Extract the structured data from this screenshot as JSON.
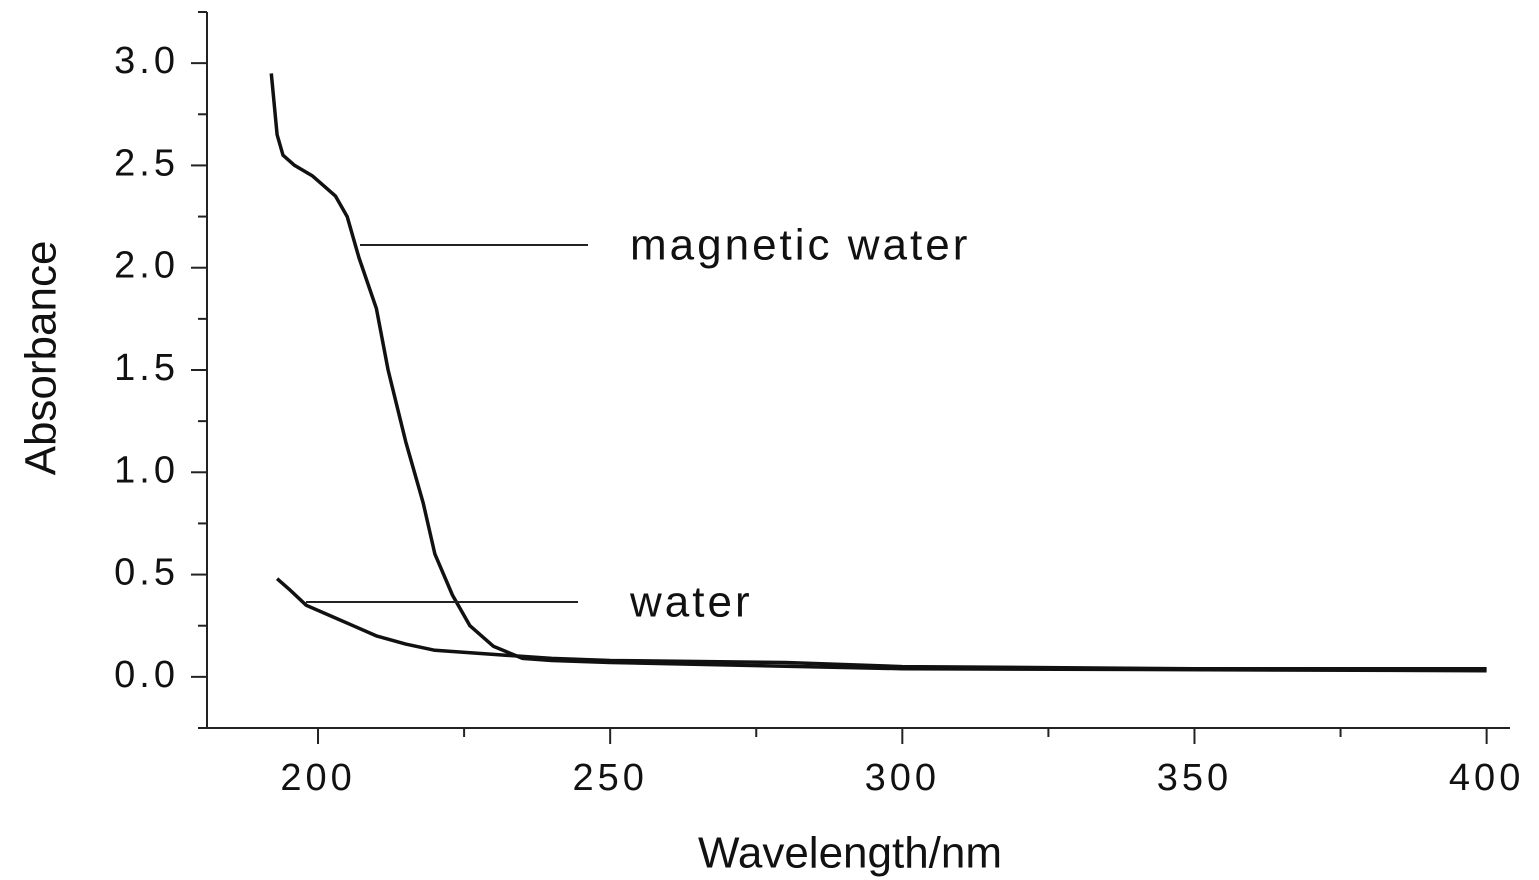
{
  "chart_data": {
    "type": "line",
    "x_label": "Wavelength/nm",
    "y_label": "Absorbance",
    "xlim": [
      181,
      404
    ],
    "ylim": [
      -0.25,
      3.25
    ],
    "xticks": [
      200,
      250,
      300,
      350,
      400
    ],
    "xminor": [
      225,
      275,
      325,
      375
    ],
    "yticks": [
      {
        "value": 0,
        "label": "0.0"
      },
      0.5,
      {
        "value": 1,
        "label": "1.0"
      },
      1.5,
      {
        "value": 2,
        "label": "2.0"
      },
      2.5,
      {
        "value": 3,
        "label": "3.0"
      }
    ],
    "yminor": [
      -0.25,
      0.25,
      0.75,
      1.25,
      1.75,
      2.25,
      2.75,
      3.25
    ],
    "grid": false,
    "series": [
      {
        "name": "magnetic water",
        "color": "#111111",
        "x": [
          192,
          193,
          194,
          196,
          199,
          203,
          205,
          207,
          210,
          212,
          215,
          218,
          220,
          223,
          226,
          230,
          235,
          240,
          250,
          300,
          400
        ],
        "values": [
          2.95,
          2.65,
          2.55,
          2.5,
          2.45,
          2.35,
          2.25,
          2.05,
          1.8,
          1.5,
          1.15,
          0.85,
          0.6,
          0.4,
          0.25,
          0.15,
          0.09,
          0.08,
          0.07,
          0.04,
          0.03
        ]
      },
      {
        "name": "water",
        "color": "#111111",
        "x": [
          193,
          195,
          198,
          202,
          206,
          210,
          215,
          220,
          230,
          240,
          250,
          280,
          300,
          350,
          400
        ],
        "values": [
          0.48,
          0.43,
          0.35,
          0.3,
          0.25,
          0.2,
          0.16,
          0.13,
          0.11,
          0.09,
          0.08,
          0.07,
          0.05,
          0.04,
          0.04
        ]
      }
    ]
  }
}
